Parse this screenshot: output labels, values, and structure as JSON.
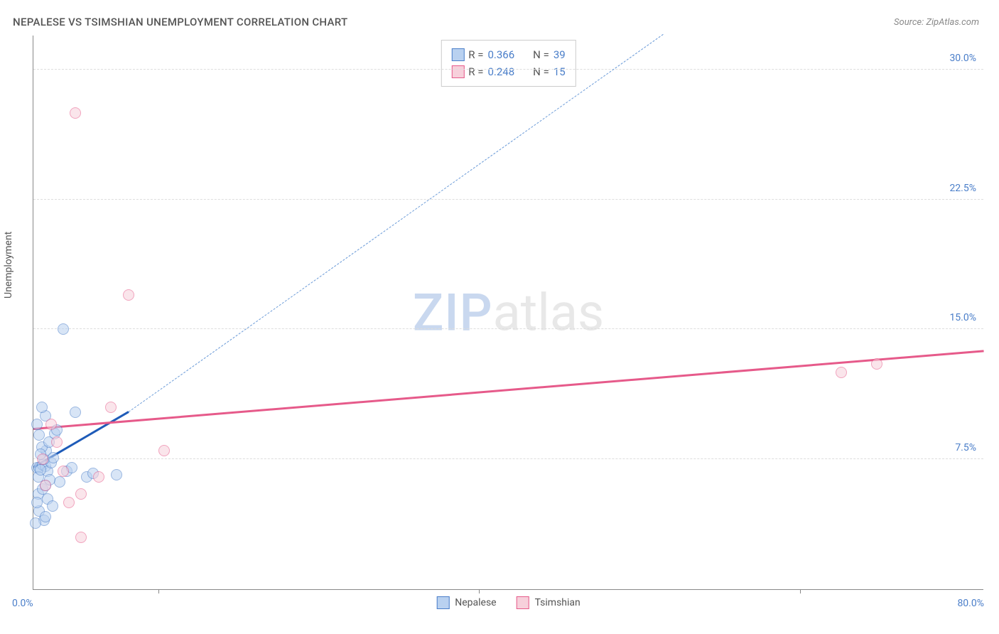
{
  "title": "NEPALESE VS TSIMSHIAN UNEMPLOYMENT CORRELATION CHART",
  "source_label": "Source:",
  "source_value": "ZipAtlas.com",
  "ylabel": "Unemployment",
  "watermark": {
    "part1": "ZIP",
    "part2": "atlas"
  },
  "chart": {
    "type": "scatter",
    "background_color": "#ffffff",
    "grid_color": "#dddddd",
    "axis_color": "#888888",
    "xlim": [
      0,
      80
    ],
    "ylim": [
      0,
      32
    ],
    "yticks": [
      7.5,
      15.0,
      22.5,
      30.0
    ],
    "ytick_labels": [
      "7.5%",
      "15.0%",
      "22.5%",
      "30.0%"
    ],
    "xticks_minor": [
      10.5,
      37.5,
      64.5
    ],
    "xtick_labels": {
      "left": "0.0%",
      "right": "80.0%"
    },
    "point_radius": 8,
    "point_stroke_width": 1.5,
    "series": [
      {
        "name": "Nepalese",
        "fill_color": "#b9d1f0",
        "stroke_color": "#4a7ec9",
        "fill_opacity": 0.55,
        "R": "0.366",
        "N": "39",
        "regression": {
          "solid": {
            "x1": 0,
            "y1": 7.0,
            "x2": 8,
            "y2": 10.2,
            "color": "#1e5bb8",
            "width": 2.5
          },
          "dashed": {
            "x1": 8,
            "y1": 10.2,
            "x2": 53,
            "y2": 32,
            "color": "#6b9bd8",
            "width": 1.5
          }
        },
        "points": [
          [
            0.3,
            7.0
          ],
          [
            0.5,
            7.0
          ],
          [
            0.8,
            7.2
          ],
          [
            1.0,
            7.1
          ],
          [
            1.2,
            6.8
          ],
          [
            0.4,
            6.5
          ],
          [
            0.6,
            6.9
          ],
          [
            1.5,
            7.3
          ],
          [
            0.9,
            7.5
          ],
          [
            1.1,
            8.0
          ],
          [
            0.7,
            8.2
          ],
          [
            1.3,
            8.5
          ],
          [
            0.5,
            8.9
          ],
          [
            1.8,
            9.0
          ],
          [
            2.0,
            9.2
          ],
          [
            0.3,
            9.5
          ],
          [
            1.0,
            10.0
          ],
          [
            3.5,
            10.2
          ],
          [
            0.4,
            5.5
          ],
          [
            0.8,
            5.8
          ],
          [
            1.2,
            5.2
          ],
          [
            1.6,
            4.8
          ],
          [
            0.5,
            4.5
          ],
          [
            0.9,
            4.0
          ],
          [
            2.2,
            6.2
          ],
          [
            2.8,
            6.8
          ],
          [
            3.2,
            7.0
          ],
          [
            0.2,
            3.8
          ],
          [
            1.0,
            6.0
          ],
          [
            1.4,
            6.3
          ],
          [
            4.5,
            6.5
          ],
          [
            5.0,
            6.7
          ],
          [
            0.6,
            7.8
          ],
          [
            1.7,
            7.6
          ],
          [
            7.0,
            6.6
          ],
          [
            0.3,
            5.0
          ],
          [
            2.5,
            15.0
          ],
          [
            1.0,
            4.2
          ],
          [
            0.7,
            10.5
          ]
        ]
      },
      {
        "name": "Tsimshian",
        "fill_color": "#f7d0db",
        "stroke_color": "#e65a8a",
        "fill_opacity": 0.55,
        "R": "0.248",
        "N": "15",
        "regression": {
          "solid": {
            "x1": 0,
            "y1": 9.2,
            "x2": 80,
            "y2": 13.7,
            "color": "#e65a8a",
            "width": 2.5
          }
        },
        "points": [
          [
            3.5,
            27.5
          ],
          [
            8.0,
            17.0
          ],
          [
            1.5,
            9.5
          ],
          [
            2.5,
            6.8
          ],
          [
            4.0,
            5.5
          ],
          [
            5.5,
            6.5
          ],
          [
            3.0,
            5.0
          ],
          [
            11.0,
            8.0
          ],
          [
            6.5,
            10.5
          ],
          [
            1.0,
            6.0
          ],
          [
            0.8,
            7.5
          ],
          [
            4.0,
            3.0
          ],
          [
            68.0,
            12.5
          ],
          [
            71.0,
            13.0
          ],
          [
            2.0,
            8.5
          ]
        ]
      }
    ]
  },
  "stat_legend": {
    "R_label": "R =",
    "N_label": "N ="
  }
}
